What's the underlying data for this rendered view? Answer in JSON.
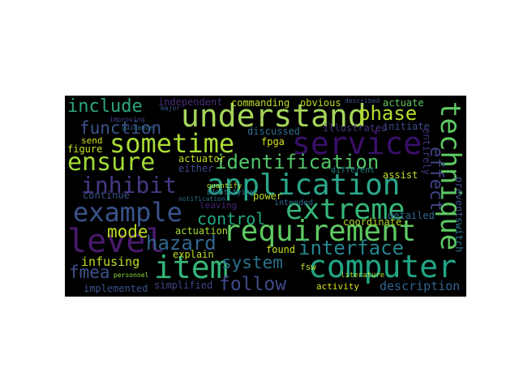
{
  "colors": {
    "background": "#000000",
    "page": "#ffffff"
  },
  "words": [
    {
      "text": "understand",
      "color": "#a5d55a"
    },
    {
      "text": "sometime",
      "color": "#a8db34"
    },
    {
      "text": "service",
      "color": "#3a0f6b"
    },
    {
      "text": "application",
      "color": "#2ba88d"
    },
    {
      "text": "ensure",
      "color": "#a2da37"
    },
    {
      "text": "inhibit",
      "color": "#443983"
    },
    {
      "text": "identification",
      "color": "#52c569"
    },
    {
      "text": "example",
      "color": "#3a538b"
    },
    {
      "text": "extreme",
      "color": "#35b779"
    },
    {
      "text": "requirement",
      "color": "#5ec962"
    },
    {
      "text": "level",
      "color": "#481a6c"
    },
    {
      "text": "hazard",
      "color": "#31668e"
    },
    {
      "text": "item",
      "color": "#35b779"
    },
    {
      "text": "computer",
      "color": "#21a585"
    },
    {
      "text": "interface",
      "color": "#24868e"
    },
    {
      "text": "technique",
      "color": "#5ec962"
    },
    {
      "text": "effect",
      "color": "#414487"
    },
    {
      "text": "include",
      "color": "#2ea57d"
    },
    {
      "text": "phase",
      "color": "#b5de2b"
    },
    {
      "text": "function",
      "color": "#3b528b"
    },
    {
      "text": "control",
      "color": "#22a884"
    },
    {
      "text": "mode",
      "color": "#c2df23"
    },
    {
      "text": "system",
      "color": "#2c728e"
    },
    {
      "text": "follow",
      "color": "#3e4a89"
    },
    {
      "text": "fmea",
      "color": "#3b528b"
    },
    {
      "text": "infusing",
      "color": "#bddf26"
    },
    {
      "text": "description",
      "color": "#33638d"
    },
    {
      "text": "independent",
      "color": "#472d7b"
    },
    {
      "text": "commanding",
      "color": "#bddf26"
    },
    {
      "text": "obvious",
      "color": "#b8de29"
    },
    {
      "text": "actuate",
      "color": "#63cb5f"
    },
    {
      "text": "discussed",
      "color": "#2f6c8e"
    },
    {
      "text": "illustrated",
      "color": "#46327e"
    },
    {
      "text": "initiate",
      "color": "#3e4c8a"
    },
    {
      "text": "fpga",
      "color": "#d8e219"
    },
    {
      "text": "send",
      "color": "#d2e21b"
    },
    {
      "text": "figure",
      "color": "#c8e020"
    },
    {
      "text": "actuator",
      "color": "#bddf26"
    },
    {
      "text": "either",
      "color": "#3e4989"
    },
    {
      "text": "continue",
      "color": "#3b528b"
    },
    {
      "text": "leaving",
      "color": "#482677"
    },
    {
      "text": "power",
      "color": "#b8de29"
    },
    {
      "text": "actuation",
      "color": "#a8db34"
    },
    {
      "text": "explain",
      "color": "#bddf26"
    },
    {
      "text": "found",
      "color": "#c8e020"
    },
    {
      "text": "detailed",
      "color": "#31688e"
    },
    {
      "text": "coordinate",
      "color": "#b5de2b"
    },
    {
      "text": "assist",
      "color": "#c2df23"
    },
    {
      "text": "fsw",
      "color": "#c2df23"
    },
    {
      "text": "activity",
      "color": "#d8e219"
    },
    {
      "text": "implemented",
      "color": "#3b528b"
    },
    {
      "text": "simplified",
      "color": "#414487"
    },
    {
      "text": "intended",
      "color": "#31688e"
    },
    {
      "text": "different",
      "color": "#24868e"
    },
    {
      "text": "identifying",
      "color": "#2a788e"
    },
    {
      "text": "quantify",
      "color": "#b5de2b"
    },
    {
      "text": "notification",
      "color": "#2d708e"
    },
    {
      "text": "personnel",
      "color": "#8fd744"
    },
    {
      "text": "literature",
      "color": "#b5de2b"
    },
    {
      "text": "entirely",
      "color": "#46337e"
    },
    {
      "text": "prevent",
      "color": "#3b528b"
    },
    {
      "text": "switch",
      "color": "#2c728e"
    },
    {
      "text": "improving",
      "color": "#3f4788"
    },
    {
      "text": "guidance",
      "color": "#2d708e"
    },
    {
      "text": "major",
      "color": "#38598c"
    },
    {
      "text": "described",
      "color": "#3b528b"
    }
  ]
}
